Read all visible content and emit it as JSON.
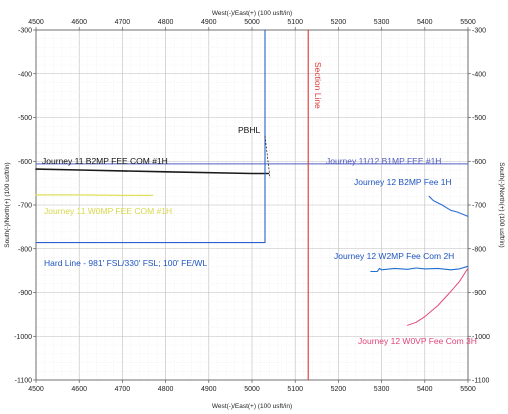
{
  "chart_data": {
    "type": "line",
    "title": "",
    "xlabel": "West(-)/East(+) (100 usft/in)",
    "ylabel": "South(-)/North(+) (100 usft/in)",
    "xlim": [
      4500,
      5500
    ],
    "ylim": [
      -1100,
      -300
    ],
    "xticks": [
      4500,
      4600,
      4700,
      4800,
      4900,
      5000,
      5100,
      5200,
      5300,
      5400,
      5500
    ],
    "yticks": [
      -300,
      -400,
      -500,
      -600,
      -700,
      -800,
      -900,
      -1000,
      -1100
    ],
    "grid": true,
    "series": [
      {
        "name": "Journey 11 B2MP FEE COM #1H",
        "color": "#1a1a1a",
        "points": [
          [
            4500,
            -618
          ],
          [
            4600,
            -620
          ],
          [
            4800,
            -624
          ],
          [
            5000,
            -628
          ],
          [
            5038,
            -628
          ]
        ]
      },
      {
        "name": "Journey 11 W0MP FEE COM #1H",
        "color": "#e0e05a",
        "points": [
          [
            4500,
            -677
          ],
          [
            4600,
            -677
          ],
          [
            4700,
            -678
          ],
          [
            4770,
            -678
          ]
        ]
      },
      {
        "name": "Hard Line - 981' FSL/330' FSL; 100' FE/WL",
        "color": "#2a5fd0",
        "points": [
          [
            4500,
            -786
          ],
          [
            5030,
            -786
          ],
          [
            5030,
            -300
          ]
        ]
      },
      {
        "name": "Journey 11/12 B1MP FEE #1H",
        "color": "#4e5ec8",
        "points": [
          [
            4500,
            -606
          ],
          [
            5500,
            -606
          ]
        ]
      },
      {
        "name": "Section Line",
        "color": "#e03434",
        "points": [
          [
            5130,
            -300
          ],
          [
            5130,
            -1100
          ]
        ]
      },
      {
        "name": "Journey 12 B2MP Fee 1H",
        "color": "#2f6ed6",
        "points": [
          [
            5410,
            -680
          ],
          [
            5420,
            -690
          ],
          [
            5440,
            -700
          ],
          [
            5460,
            -712
          ],
          [
            5475,
            -716
          ],
          [
            5500,
            -726
          ]
        ]
      },
      {
        "name": "Journey 12 W2MP Fee Com 2H",
        "color": "#1d6fd0",
        "points": [
          [
            5275,
            -852
          ],
          [
            5290,
            -852
          ],
          [
            5295,
            -845
          ],
          [
            5300,
            -848
          ],
          [
            5330,
            -845
          ],
          [
            5360,
            -847
          ],
          [
            5380,
            -844
          ],
          [
            5400,
            -846
          ],
          [
            5430,
            -845
          ],
          [
            5460,
            -848
          ],
          [
            5480,
            -846
          ],
          [
            5500,
            -840
          ]
        ]
      },
      {
        "name": "Journey 12 W0VP Fee Com 3H",
        "color": "#e24a7e",
        "points": [
          [
            5360,
            -975
          ],
          [
            5380,
            -968
          ],
          [
            5400,
            -955
          ],
          [
            5430,
            -930
          ],
          [
            5460,
            -898
          ],
          [
            5480,
            -875
          ],
          [
            5495,
            -852
          ],
          [
            5500,
            -845
          ]
        ]
      }
    ],
    "annotations": [
      {
        "text": "Journey 11 B2MP FEE COM #1H",
        "color": "#111111"
      },
      {
        "text": "Journey 11 W0MP FEE COM #1H",
        "color": "#d8d84e"
      },
      {
        "text": "Hard Line - 981' FSL/330' FSL; 100' FE/WL",
        "color": "#1f55c0"
      },
      {
        "text": "Journey 11/12 B1MP FEE #1H",
        "color": "#4f5bbd"
      },
      {
        "text": "Section Line",
        "color": "#e03434"
      },
      {
        "text": "Journey 12 B2MP Fee 1H",
        "color": "#1f55c0"
      },
      {
        "text": "Journey 12 W2MP Fee Com 2H",
        "color": "#1f55c0"
      },
      {
        "text": "Journey 12 W0VP Fee Com 3H",
        "color": "#e0457a"
      },
      {
        "text": "PBHL",
        "color": "#111111"
      }
    ]
  }
}
